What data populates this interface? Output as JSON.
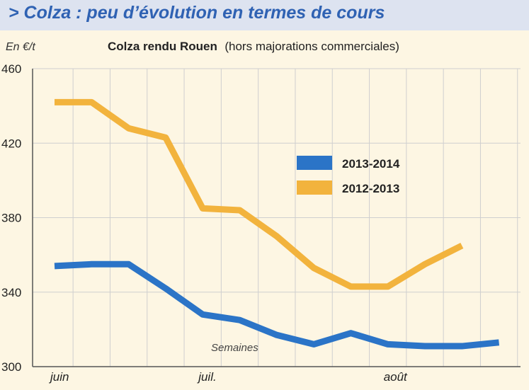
{
  "header": {
    "title": "> Colza : peu d’évolution en termes de cours"
  },
  "colors": {
    "title_bar": "#dde3f0",
    "title_text": "#2f62b3",
    "background": "#fdf6e3",
    "grid": "#cfcfcf",
    "series_2013_2014": "#2b74c7",
    "series_2012_2013": "#f2b33d"
  },
  "chart_data": {
    "type": "line",
    "title": "Colza rendu Rouen",
    "subtitle": "(hors majorations commerciales)",
    "ylabel": "En €/t",
    "xlabel": "Semaines",
    "ylim": [
      300,
      460
    ],
    "yticks": [
      300,
      340,
      380,
      420,
      460
    ],
    "x_count": 13,
    "x_ticks": [
      {
        "label": "juin",
        "index": 0
      },
      {
        "label": "juil.",
        "index": 4
      },
      {
        "label": "août",
        "index": 9
      }
    ],
    "grid": true,
    "legend_position": "center-right",
    "series": [
      {
        "name": "2013-2014",
        "color": "#2b74c7",
        "values": [
          354,
          355,
          355,
          342,
          328,
          325,
          317,
          312,
          318,
          312,
          311,
          311,
          313
        ]
      },
      {
        "name": "2012-2013",
        "color": "#f2b33d",
        "values": [
          442,
          442,
          428,
          423,
          385,
          384,
          370,
          353,
          343,
          343,
          355,
          365,
          null
        ]
      }
    ]
  }
}
